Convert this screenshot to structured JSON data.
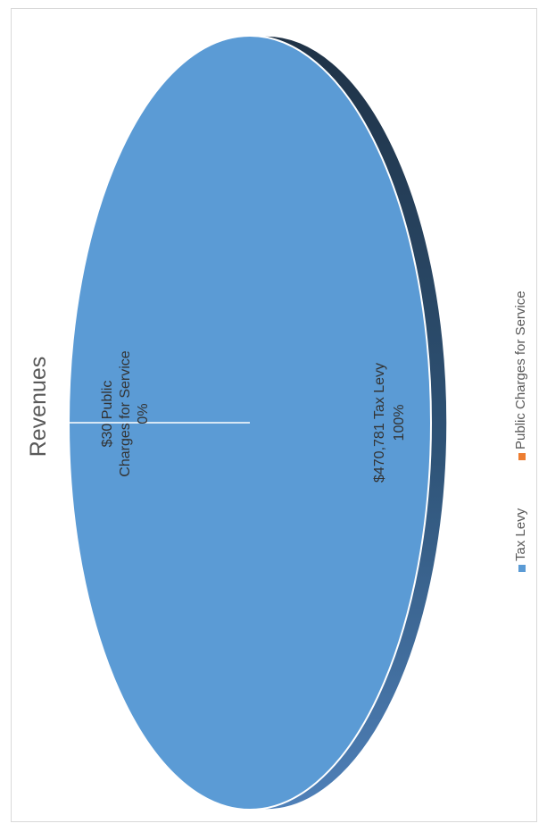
{
  "chart_data": {
    "type": "pie",
    "title": "Revenues",
    "slices": [
      {
        "name": "Tax Levy",
        "value": 470781,
        "percent": "100%",
        "label_line1": "$470,781 Tax Levy",
        "label_line2": "100%",
        "color": "#5b9bd5"
      },
      {
        "name": "Public Charges for Service",
        "value": 30,
        "percent": "0%",
        "label_line1": "$30  Public",
        "label_line2": "Charges for Service",
        "label_line3": "0%",
        "color": "#ed7d31"
      }
    ],
    "legend": {
      "position": "bottom",
      "items": [
        "Tax Levy",
        "Public Charges for Service"
      ]
    },
    "colors": {
      "top_face": "#5b9bd5",
      "side_dark": "#203a55",
      "side_light": "#4f7fb5"
    }
  }
}
